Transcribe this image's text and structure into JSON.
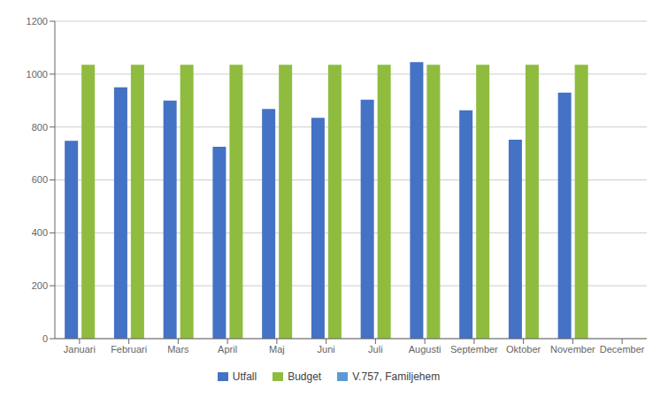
{
  "chart_data": {
    "type": "bar",
    "categories": [
      "Januari",
      "Februari",
      "Mars",
      "April",
      "Maj",
      "Juni",
      "Juli",
      "Augusti",
      "September",
      "Oktober",
      "November",
      "December"
    ],
    "series": [
      {
        "name": "Utfall",
        "color": "#4472c4",
        "values": [
          748,
          950,
          900,
          725,
          868,
          835,
          903,
          1045,
          863,
          752,
          930,
          null
        ]
      },
      {
        "name": "Budget",
        "color": "#8fbc3f",
        "values": [
          1035,
          1035,
          1035,
          1035,
          1035,
          1035,
          1035,
          1035,
          1035,
          1035,
          1035,
          null
        ]
      },
      {
        "name": "V.757, Familjehem",
        "color": "#5b9bd5",
        "values": [
          null,
          null,
          null,
          null,
          null,
          null,
          null,
          null,
          null,
          null,
          null,
          null
        ]
      }
    ],
    "ylim": [
      0,
      1200
    ],
    "yticks": [
      0,
      200,
      400,
      600,
      800,
      1000,
      1200
    ],
    "grid": true,
    "legend": "bottom"
  }
}
